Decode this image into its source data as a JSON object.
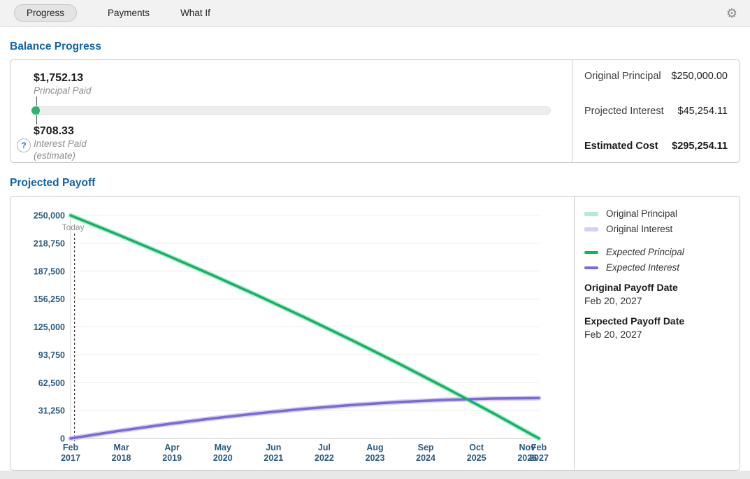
{
  "topbar": {
    "tabs": [
      {
        "label": "Progress",
        "selected": true
      },
      {
        "label": "Payments",
        "selected": false
      },
      {
        "label": "What If",
        "selected": false
      }
    ],
    "settings_icon": "⚙"
  },
  "balance_progress": {
    "title": "Balance Progress",
    "principal": {
      "amount": "$1,752.13",
      "label": "Principal Paid"
    },
    "interest": {
      "amount": "$708.33",
      "label": "Interest Paid",
      "note": "(estimate)",
      "help_icon": "?"
    },
    "summary": [
      {
        "label": "Original Principal",
        "value": "$250,000.00",
        "emphasis": false
      },
      {
        "label": "Projected Interest",
        "value": "$45,254.11",
        "emphasis": false
      },
      {
        "label": "Estimated Cost",
        "value": "$295,254.11",
        "emphasis": true
      }
    ]
  },
  "projected_payoff": {
    "title": "Projected Payoff",
    "legend": [
      {
        "label": "Original Principal",
        "color": "#b5ecd2",
        "style": "band"
      },
      {
        "label": "Original Interest",
        "color": "#d8cef4",
        "style": "band"
      },
      {
        "label": "Expected Principal",
        "color": "#12b464",
        "style": "line"
      },
      {
        "label": "Expected Interest",
        "color": "#7b68dd",
        "style": "line"
      }
    ],
    "original_payoff_label": "Original Payoff Date",
    "original_payoff_date": "Feb 20, 2027",
    "expected_payoff_label": "Expected Payoff Date",
    "expected_payoff_date": "Feb 20, 2027"
  },
  "chart_data": {
    "type": "line",
    "x_unit": "months since Feb 2017",
    "xlim": [
      0,
      120
    ],
    "ylim": [
      0,
      250000
    ],
    "grid": true,
    "legend_position": "right",
    "today": {
      "month": 1,
      "label": "Today"
    },
    "x_months": [
      0,
      12,
      24,
      36,
      48,
      60,
      72,
      84,
      96,
      108,
      120
    ],
    "series": [
      {
        "name": "Original Principal",
        "color": "#b5ecd2",
        "width": 7,
        "values": [
          250000,
          228641,
          206547,
          183695,
          160045,
          135577,
          110288,
          84102,
          57009,
          28986,
          0
        ]
      },
      {
        "name": "Original Interest",
        "color": "#d8cef4",
        "width": 7,
        "values": [
          0,
          8166,
          15598,
          22271,
          28147,
          33204,
          37440,
          40780,
          43212,
          44715,
          45254
        ]
      },
      {
        "name": "Expected Interest",
        "color": "#7b68dd",
        "width": 3.5,
        "values": [
          0,
          8166,
          15598,
          22271,
          28147,
          33204,
          37440,
          40780,
          43212,
          44715,
          45254
        ]
      },
      {
        "name": "Expected Principal",
        "color": "#12b464",
        "width": 3.5,
        "values": [
          250000,
          228641,
          206547,
          183695,
          160045,
          135577,
          110288,
          84102,
          57009,
          28986,
          0
        ]
      }
    ],
    "y_ticks": [
      {
        "value": 0,
        "label": "0"
      },
      {
        "value": 31250,
        "label": "31,250"
      },
      {
        "value": 62500,
        "label": "62,500"
      },
      {
        "value": 93750,
        "label": "93,750"
      },
      {
        "value": 125000,
        "label": "125,000"
      },
      {
        "value": 156250,
        "label": "156,250"
      },
      {
        "value": 187500,
        "label": "187,500"
      },
      {
        "value": 218750,
        "label": "218,750"
      },
      {
        "value": 250000,
        "label": "250,000"
      }
    ],
    "x_ticks": [
      {
        "month": 0,
        "line1": "Feb",
        "line2": "2017"
      },
      {
        "month": 13,
        "line1": "Mar",
        "line2": "2018"
      },
      {
        "month": 26,
        "line1": "Apr",
        "line2": "2019"
      },
      {
        "month": 39,
        "line1": "May",
        "line2": "2020"
      },
      {
        "month": 52,
        "line1": "Jun",
        "line2": "2021"
      },
      {
        "month": 65,
        "line1": "Jul",
        "line2": "2022"
      },
      {
        "month": 78,
        "line1": "Aug",
        "line2": "2023"
      },
      {
        "month": 91,
        "line1": "Sep",
        "line2": "2024"
      },
      {
        "month": 104,
        "line1": "Oct",
        "line2": "2025"
      },
      {
        "month": 117,
        "line1": "Nov",
        "line2": "2026"
      },
      {
        "month": 120,
        "line1": "Feb",
        "line2": "2027"
      }
    ],
    "axis_label_color": "#2a5a7d",
    "grid_color": "#ececec",
    "axis_line_color": "#cfcfcf"
  }
}
